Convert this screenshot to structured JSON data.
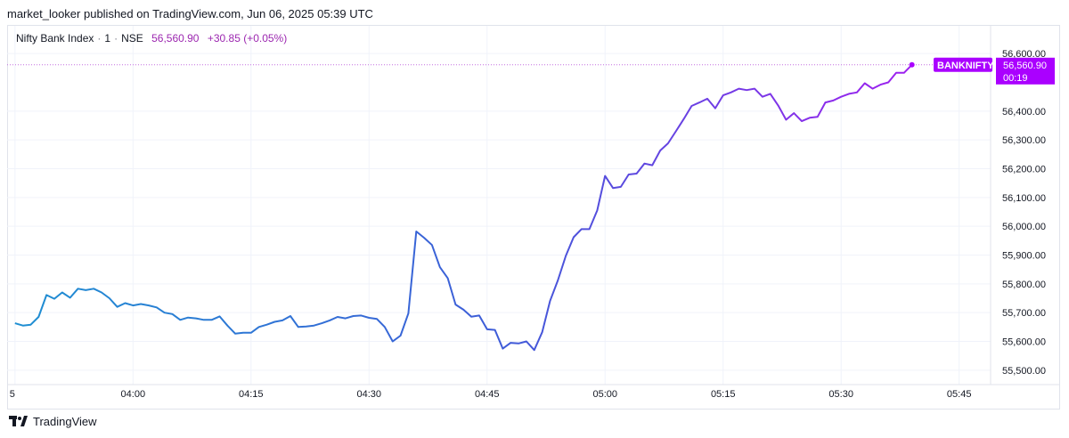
{
  "header": {
    "publish_line": "market_looker published on TradingView.com, Jun 06, 2025 05:39 UTC"
  },
  "legend": {
    "symbol": "Nifty Bank Index",
    "interval": "1",
    "exchange": "NSE",
    "price": "56,560.90",
    "change": "+30.85 (+0.05%)"
  },
  "price_label": {
    "ticker": "BANKNIFTY",
    "price": "56,560.90",
    "countdown": "00:19"
  },
  "footer": {
    "brand": "TradingView"
  },
  "colors": {
    "line_start": "#1e90d2",
    "line_end": "#a020f0",
    "label_bg": "#aa00ff",
    "price_line": "#c36ee0"
  },
  "chart_data": {
    "type": "line",
    "title": "Nifty Bank Index · 1 · NSE",
    "xlabel": "",
    "ylabel": "",
    "ylim": [
      55450,
      56650
    ],
    "xlim_minutes": [
      224.0,
      349.0
    ],
    "x_ticks": [
      "5",
      "04:00",
      "04:15",
      "04:30",
      "04:45",
      "05:00",
      "05:15",
      "05:30",
      "05:45"
    ],
    "y_ticks": [
      "56,600.00",
      "56,400.00",
      "56,300.00",
      "56,200.00",
      "56,100.00",
      "56,000.00",
      "55,900.00",
      "55,800.00",
      "55,700.00",
      "55,600.00",
      "55,500.00"
    ],
    "grid": true,
    "last_price": 56560.9,
    "series": [
      {
        "name": "BANKNIFTY",
        "x": [
          "03:45",
          "03:46",
          "03:47",
          "03:48",
          "03:49",
          "03:50",
          "03:51",
          "03:52",
          "03:53",
          "03:54",
          "03:55",
          "03:56",
          "03:57",
          "03:58",
          "03:59",
          "04:00",
          "04:01",
          "04:02",
          "04:03",
          "04:04",
          "04:05",
          "04:06",
          "04:07",
          "04:08",
          "04:09",
          "04:10",
          "04:11",
          "04:12",
          "04:13",
          "04:14",
          "04:15",
          "04:16",
          "04:17",
          "04:18",
          "04:19",
          "04:20",
          "04:21",
          "04:22",
          "04:23",
          "04:24",
          "04:25",
          "04:26",
          "04:27",
          "04:28",
          "04:29",
          "04:30",
          "04:31",
          "04:32",
          "04:33",
          "04:34",
          "04:35",
          "04:36",
          "04:37",
          "04:38",
          "04:39",
          "04:40",
          "04:41",
          "04:42",
          "04:43",
          "04:44",
          "04:45",
          "04:46",
          "04:47",
          "04:48",
          "04:49",
          "04:50",
          "04:51",
          "04:52",
          "04:53",
          "04:54",
          "04:55",
          "04:56",
          "04:57",
          "04:58",
          "04:59",
          "05:00",
          "05:01",
          "05:02",
          "05:03",
          "05:04",
          "05:05",
          "05:06",
          "05:07",
          "05:08",
          "05:09",
          "05:10",
          "05:11",
          "05:12",
          "05:13",
          "05:14",
          "05:15",
          "05:16",
          "05:17",
          "05:18",
          "05:19",
          "05:20",
          "05:21",
          "05:22",
          "05:23",
          "05:24",
          "05:25",
          "05:26",
          "05:27",
          "05:28",
          "05:29",
          "05:30",
          "05:31",
          "05:32",
          "05:33",
          "05:34",
          "05:35",
          "05:36",
          "05:37",
          "05:38",
          "05:39"
        ],
        "y": [
          55663,
          55655,
          55658,
          55685,
          55761,
          55748,
          55770,
          55752,
          55783,
          55778,
          55783,
          55770,
          55750,
          55720,
          55733,
          55725,
          55730,
          55725,
          55718,
          55700,
          55695,
          55675,
          55683,
          55680,
          55675,
          55675,
          55687,
          55655,
          55627,
          55630,
          55630,
          55650,
          55658,
          55668,
          55673,
          55688,
          55650,
          55652,
          55655,
          55663,
          55673,
          55685,
          55680,
          55688,
          55690,
          55682,
          55678,
          55650,
          55600,
          55620,
          55697,
          55982,
          55960,
          55935,
          55858,
          55820,
          55728,
          55710,
          55686,
          55690,
          55642,
          55640,
          55575,
          55595,
          55593,
          55600,
          55570,
          55632,
          55740,
          55812,
          55897,
          55962,
          55990,
          55990,
          56055,
          56175,
          56133,
          56137,
          56180,
          56183,
          56218,
          56212,
          56263,
          56288,
          56330,
          56373,
          56418,
          56430,
          56443,
          56410,
          56455,
          56465,
          56478,
          56473,
          56478,
          56450,
          56460,
          56420,
          56370,
          56393,
          56365,
          56377,
          56380,
          56430,
          56437,
          56450,
          56460,
          56465,
          56497,
          56478,
          56492,
          56500,
          56533,
          56533,
          56561
        ]
      }
    ]
  }
}
